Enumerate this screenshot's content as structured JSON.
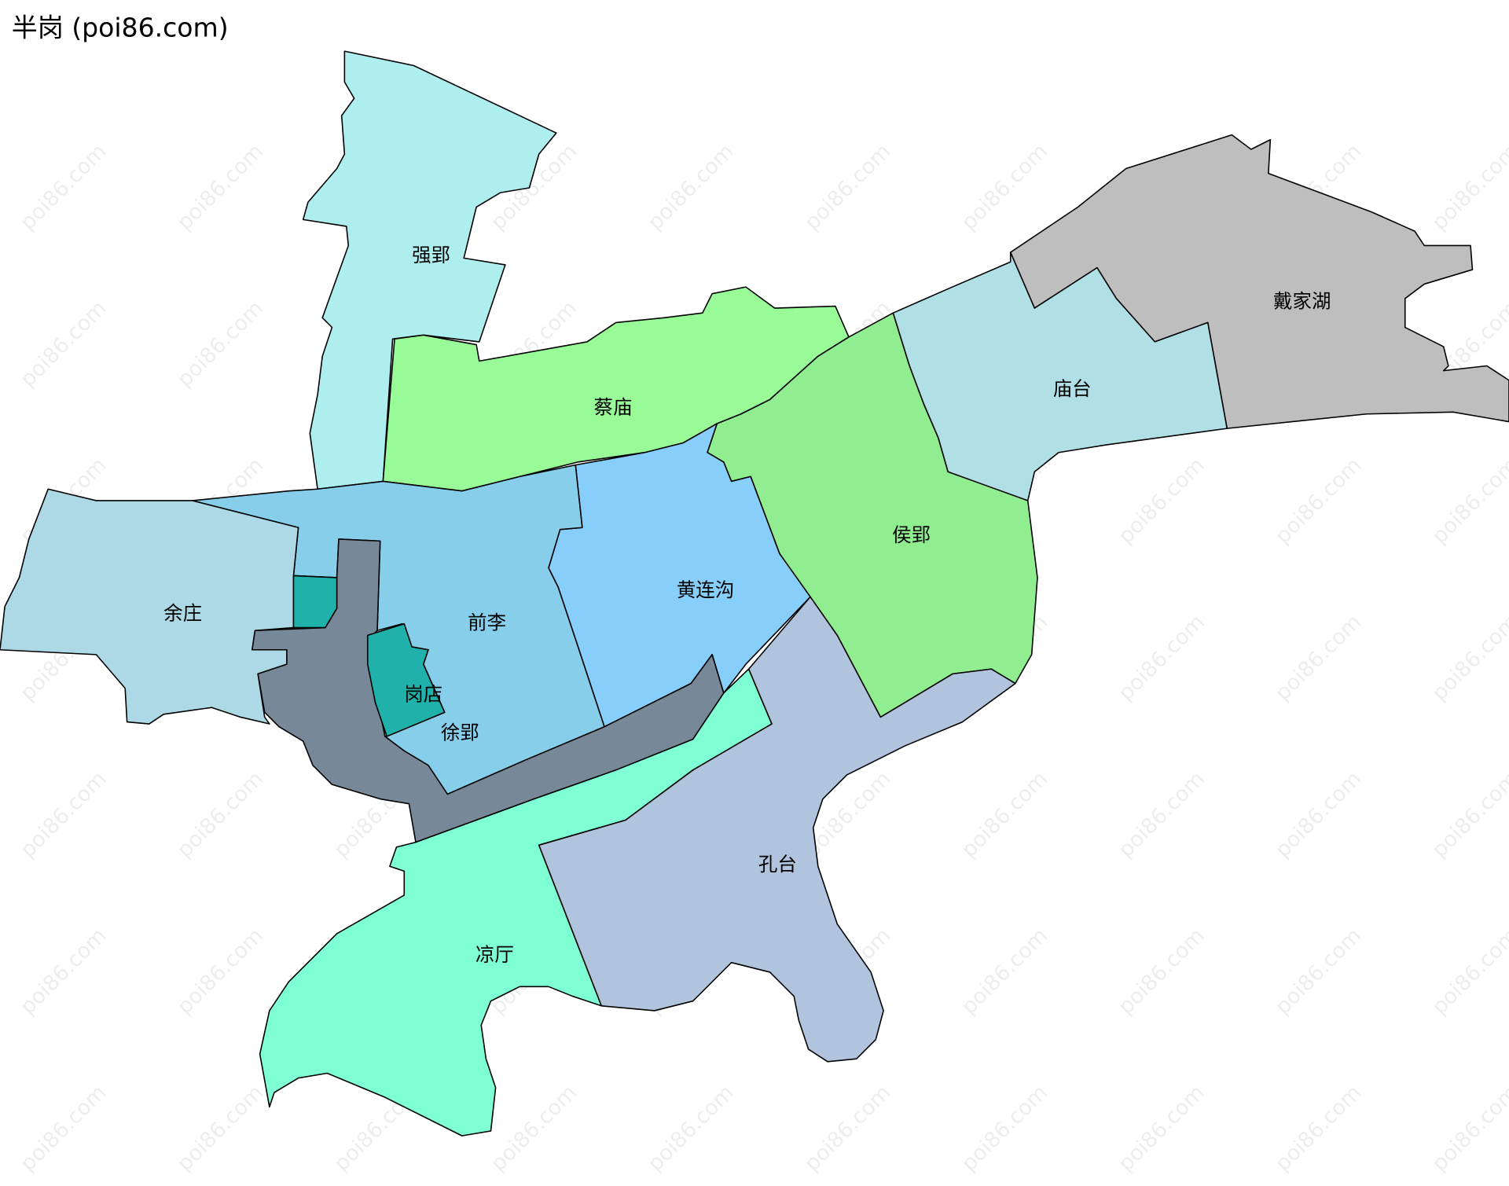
{
  "title": "半岗 (poi86.com)",
  "watermark": "poi86.com",
  "regions": [
    {
      "name": "强郢",
      "color": "#afeeee"
    },
    {
      "name": "蔡庙",
      "color": "#98fb98"
    },
    {
      "name": "戴家湖",
      "color": "#bebebe"
    },
    {
      "name": "庙台",
      "color": "#b0e0e6"
    },
    {
      "name": "侯郢",
      "color": "#90ee90"
    },
    {
      "name": "黄连沟",
      "color": "#87cefa"
    },
    {
      "name": "前李",
      "color": "#87ceeb"
    },
    {
      "name": "余庄",
      "color": "#add8e6"
    },
    {
      "name": "岗店",
      "color": "#778899"
    },
    {
      "name": "徐郢",
      "color": "#20b2aa"
    },
    {
      "name": "凉厅",
      "color": "#7fffd4"
    },
    {
      "name": "孔台",
      "color": "#b0c4de"
    }
  ]
}
